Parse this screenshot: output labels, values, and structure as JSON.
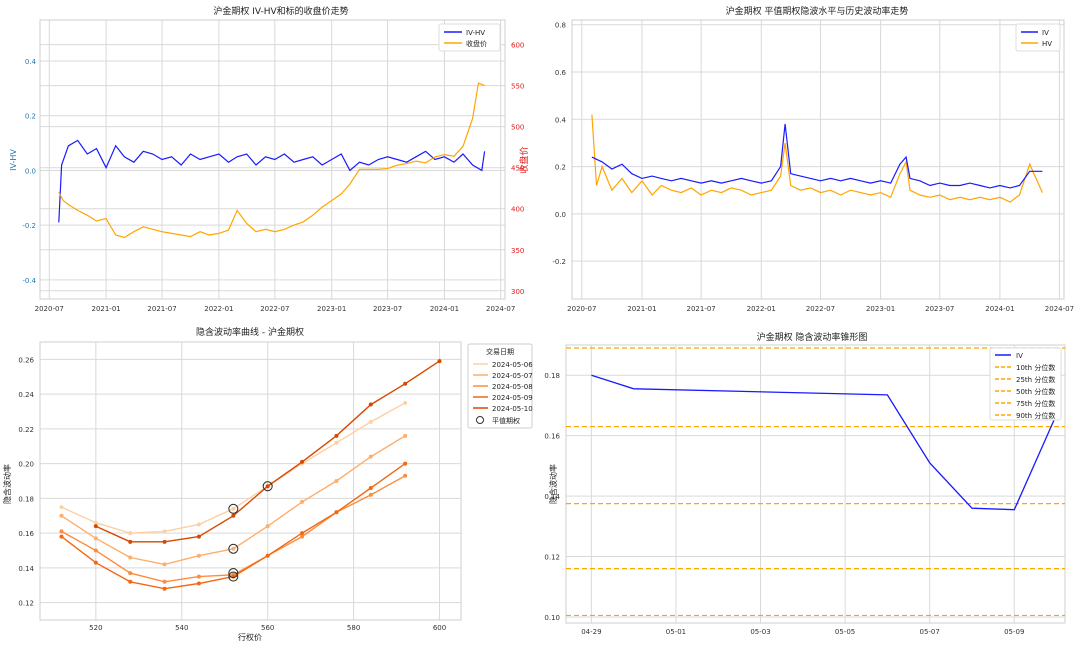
{
  "colors": {
    "blue": "#1a1aff",
    "orange": "#ffa500",
    "red": "#e41a1c",
    "axis_blue": "#1f77b4"
  },
  "chart_data": [
    {
      "type": "line",
      "title": "沪金期权 IV-HV和标的收盘价走势",
      "ylabel": "IV-HV",
      "y2label": "收盘价",
      "xticks": [
        "2020-07",
        "2021-01",
        "2021-07",
        "2022-01",
        "2022-07",
        "2023-01",
        "2023-07",
        "2024-01",
        "2024-07"
      ],
      "yticks": [
        "-0.4",
        "-0.2",
        "0.0",
        "0.2",
        "0.4"
      ],
      "y2ticks": [
        "300",
        "350",
        "400",
        "450",
        "500",
        "550",
        "600"
      ],
      "ylim": [
        -0.47,
        0.55
      ],
      "y2lim": [
        290,
        630
      ],
      "xlim": [
        "2020-06-01",
        "2024-07-15"
      ],
      "legend": [
        "IV-HV",
        "收盘价"
      ],
      "legend_position": "top-right",
      "series": [
        {
          "name": "IV-HV",
          "color": "#1a1aff",
          "x": [
            "2020-08-01",
            "2020-08-10",
            "2020-09-01",
            "2020-10-01",
            "2020-11-01",
            "2020-12-01",
            "2021-01-01",
            "2021-02-01",
            "2021-03-01",
            "2021-04-01",
            "2021-05-01",
            "2021-06-01",
            "2021-07-01",
            "2021-08-01",
            "2021-09-01",
            "2021-10-01",
            "2021-11-01",
            "2021-12-01",
            "2022-01-01",
            "2022-02-01",
            "2022-03-01",
            "2022-04-01",
            "2022-05-01",
            "2022-06-01",
            "2022-07-01",
            "2022-08-01",
            "2022-09-01",
            "2022-10-01",
            "2022-11-01",
            "2022-12-01",
            "2023-01-01",
            "2023-02-01",
            "2023-03-01",
            "2023-04-01",
            "2023-05-01",
            "2023-06-01",
            "2023-07-01",
            "2023-08-01",
            "2023-09-01",
            "2023-10-01",
            "2023-11-01",
            "2023-12-01",
            "2024-01-01",
            "2024-02-01",
            "2024-03-01",
            "2024-04-01",
            "2024-05-01",
            "2024-05-10"
          ],
          "values": [
            -0.19,
            0.02,
            0.09,
            0.11,
            0.06,
            0.08,
            0.01,
            0.09,
            0.05,
            0.03,
            0.07,
            0.06,
            0.04,
            0.05,
            0.02,
            0.06,
            0.04,
            0.05,
            0.06,
            0.03,
            0.05,
            0.06,
            0.02,
            0.05,
            0.04,
            0.06,
            0.03,
            0.04,
            0.05,
            0.02,
            0.04,
            0.06,
            0.0,
            0.03,
            0.02,
            0.04,
            0.05,
            0.04,
            0.03,
            0.05,
            0.07,
            0.04,
            0.05,
            0.03,
            0.06,
            0.02,
            0.0,
            0.07
          ]
        },
        {
          "name": "收盘价",
          "color": "#ffa500",
          "axis": "right",
          "x": [
            "2020-08-01",
            "2020-08-15",
            "2020-09-01",
            "2020-10-01",
            "2020-11-01",
            "2020-12-01",
            "2021-01-01",
            "2021-02-01",
            "2021-03-01",
            "2021-04-01",
            "2021-05-01",
            "2021-06-01",
            "2021-07-01",
            "2021-08-01",
            "2021-09-01",
            "2021-10-01",
            "2021-11-01",
            "2021-12-01",
            "2022-01-01",
            "2022-02-01",
            "2022-03-01",
            "2022-04-01",
            "2022-05-01",
            "2022-06-01",
            "2022-07-01",
            "2022-08-01",
            "2022-09-01",
            "2022-10-01",
            "2022-11-01",
            "2022-12-01",
            "2023-01-01",
            "2023-02-01",
            "2023-03-01",
            "2023-04-01",
            "2023-05-01",
            "2023-06-01",
            "2023-07-01",
            "2023-08-01",
            "2023-09-01",
            "2023-10-01",
            "2023-11-01",
            "2023-12-01",
            "2024-01-01",
            "2024-02-01",
            "2024-03-01",
            "2024-04-01",
            "2024-04-20",
            "2024-05-10"
          ],
          "values": [
            420,
            410,
            405,
            398,
            392,
            385,
            388,
            368,
            365,
            372,
            378,
            375,
            372,
            370,
            368,
            366,
            372,
            368,
            370,
            374,
            398,
            382,
            372,
            375,
            372,
            375,
            380,
            384,
            392,
            402,
            410,
            418,
            430,
            448,
            448,
            448,
            449,
            453,
            455,
            458,
            456,
            463,
            466,
            464,
            476,
            510,
            553,
            550
          ]
        }
      ]
    },
    {
      "type": "line",
      "title": "沪金期权 平值期权隐波水平与历史波动率走势",
      "xticks": [
        "2020-07",
        "2021-01",
        "2021-07",
        "2022-01",
        "2022-07",
        "2023-01",
        "2023-07",
        "2024-01",
        "2024-07"
      ],
      "yticks": [
        "-0.2",
        "0.0",
        "0.2",
        "0.4",
        "0.6",
        "0.8"
      ],
      "ylim": [
        -0.36,
        0.82
      ],
      "xlim": [
        "2020-06-01",
        "2024-07-15"
      ],
      "legend": [
        "IV",
        "HV"
      ],
      "legend_position": "top-right",
      "series": [
        {
          "name": "IV",
          "color": "#1a1aff",
          "x": [
            "2020-08-01",
            "2020-09-01",
            "2020-10-01",
            "2020-11-01",
            "2020-12-01",
            "2021-01-01",
            "2021-02-01",
            "2021-03-01",
            "2021-04-01",
            "2021-05-01",
            "2021-06-01",
            "2021-07-01",
            "2021-08-01",
            "2021-09-01",
            "2021-10-01",
            "2021-11-01",
            "2021-12-01",
            "2022-01-01",
            "2022-02-01",
            "2022-03-01",
            "2022-03-15",
            "2022-04-01",
            "2022-05-01",
            "2022-06-01",
            "2022-07-01",
            "2022-08-01",
            "2022-09-01",
            "2022-10-01",
            "2022-11-01",
            "2022-12-01",
            "2023-01-01",
            "2023-02-01",
            "2023-03-01",
            "2023-03-20",
            "2023-04-01",
            "2023-05-01",
            "2023-06-01",
            "2023-07-01",
            "2023-08-01",
            "2023-09-01",
            "2023-10-01",
            "2023-11-01",
            "2023-12-01",
            "2024-01-01",
            "2024-02-01",
            "2024-03-01",
            "2024-04-01",
            "2024-05-10"
          ],
          "values": [
            0.24,
            0.22,
            0.19,
            0.21,
            0.17,
            0.15,
            0.16,
            0.15,
            0.14,
            0.15,
            0.14,
            0.13,
            0.14,
            0.13,
            0.14,
            0.15,
            0.14,
            0.13,
            0.14,
            0.2,
            0.38,
            0.17,
            0.16,
            0.15,
            0.14,
            0.15,
            0.14,
            0.15,
            0.14,
            0.13,
            0.14,
            0.13,
            0.21,
            0.24,
            0.15,
            0.14,
            0.12,
            0.13,
            0.12,
            0.12,
            0.13,
            0.12,
            0.11,
            0.12,
            0.11,
            0.12,
            0.18,
            0.18
          ]
        },
        {
          "name": "HV",
          "color": "#ffa500",
          "x": [
            "2020-08-01",
            "2020-08-15",
            "2020-09-01",
            "2020-10-01",
            "2020-11-01",
            "2020-12-01",
            "2021-01-01",
            "2021-02-01",
            "2021-03-01",
            "2021-04-01",
            "2021-05-01",
            "2021-06-01",
            "2021-07-01",
            "2021-08-01",
            "2021-09-01",
            "2021-10-01",
            "2021-11-01",
            "2021-12-01",
            "2022-01-01",
            "2022-02-01",
            "2022-03-01",
            "2022-03-15",
            "2022-04-01",
            "2022-05-01",
            "2022-06-01",
            "2022-07-01",
            "2022-08-01",
            "2022-09-01",
            "2022-10-01",
            "2022-11-01",
            "2022-12-01",
            "2023-01-01",
            "2023-02-01",
            "2023-03-01",
            "2023-03-20",
            "2023-04-01",
            "2023-05-01",
            "2023-06-01",
            "2023-07-01",
            "2023-08-01",
            "2023-09-01",
            "2023-10-01",
            "2023-11-01",
            "2023-12-01",
            "2024-01-01",
            "2024-02-01",
            "2024-03-01",
            "2024-04-01",
            "2024-05-10"
          ],
          "values": [
            0.42,
            0.12,
            0.2,
            0.1,
            0.15,
            0.09,
            0.14,
            0.08,
            0.12,
            0.1,
            0.09,
            0.11,
            0.08,
            0.1,
            0.09,
            0.11,
            0.1,
            0.08,
            0.09,
            0.1,
            0.16,
            0.3,
            0.12,
            0.1,
            0.11,
            0.09,
            0.1,
            0.08,
            0.1,
            0.09,
            0.08,
            0.09,
            0.07,
            0.17,
            0.22,
            0.1,
            0.08,
            0.07,
            0.08,
            0.06,
            0.07,
            0.06,
            0.07,
            0.06,
            0.07,
            0.05,
            0.08,
            0.21,
            0.09
          ]
        }
      ]
    },
    {
      "type": "line",
      "title": "隐含波动率曲线 - 沪金期权",
      "xlabel": "行权价",
      "ylabel": "隐含波动率",
      "xticks": [
        "520",
        "540",
        "560",
        "580",
        "600"
      ],
      "yticks": [
        "0.12",
        "0.14",
        "0.16",
        "0.18",
        "0.20",
        "0.22",
        "0.24",
        "0.26"
      ],
      "xlim": [
        507,
        605
      ],
      "ylim": [
        0.11,
        0.27
      ],
      "legend_title": "交易日期",
      "legend": [
        "2024-05-06",
        "2024-05-07",
        "2024-05-08",
        "2024-05-09",
        "2024-05-10",
        "平值期权"
      ],
      "legend_position": "outside-right",
      "series": [
        {
          "name": "2024-05-06",
          "color": "#fdd0a2",
          "x": [
            512,
            520,
            528,
            536,
            544,
            552,
            560,
            568,
            576,
            584,
            592
          ],
          "values": [
            0.175,
            0.166,
            0.16,
            0.161,
            0.165,
            0.174,
            0.187,
            0.2,
            0.212,
            0.224,
            0.235
          ]
        },
        {
          "name": "2024-05-07",
          "color": "#fdae6b",
          "x": [
            512,
            520,
            528,
            536,
            544,
            552,
            560,
            568,
            576,
            584,
            592
          ],
          "values": [
            0.17,
            0.157,
            0.146,
            0.142,
            0.147,
            0.151,
            0.164,
            0.178,
            0.19,
            0.204,
            0.216
          ]
        },
        {
          "name": "2024-05-08",
          "color": "#fd8d3c",
          "x": [
            512,
            520,
            528,
            536,
            544,
            552,
            560,
            568,
            576,
            584,
            592
          ],
          "values": [
            0.161,
            0.15,
            0.137,
            0.132,
            0.135,
            0.136,
            0.147,
            0.158,
            0.172,
            0.182,
            0.193
          ]
        },
        {
          "name": "2024-05-09",
          "color": "#f16913",
          "x": [
            512,
            520,
            528,
            536,
            544,
            552,
            560,
            568,
            576,
            584,
            592
          ],
          "values": [
            0.158,
            0.143,
            0.132,
            0.128,
            0.131,
            0.135,
            0.147,
            0.16,
            0.172,
            0.186,
            0.2
          ]
        },
        {
          "name": "2024-05-10",
          "color": "#d94801",
          "x": [
            520,
            528,
            536,
            544,
            552,
            560,
            568,
            576,
            584,
            592,
            600
          ],
          "values": [
            0.164,
            0.155,
            0.155,
            0.158,
            0.17,
            0.187,
            0.201,
            0.216,
            0.234,
            0.246,
            0.259
          ]
        }
      ],
      "atm_points": [
        {
          "x": 552,
          "y": 0.174
        },
        {
          "x": 552,
          "y": 0.151
        },
        {
          "x": 552,
          "y": 0.137
        },
        {
          "x": 552,
          "y": 0.135
        },
        {
          "x": 560,
          "y": 0.187
        }
      ]
    },
    {
      "type": "line",
      "title": "沪金期权 隐含波动率锥形图",
      "ylabel": "隐含波动率",
      "xticks": [
        "04-29",
        "05-01",
        "05-03",
        "05-05",
        "05-07",
        "05-09"
      ],
      "yticks": [
        "0.10",
        "0.12",
        "0.14",
        "0.16",
        "0.18"
      ],
      "xlim": [
        -0.6,
        11.2
      ],
      "ylim": [
        0.098,
        0.19
      ],
      "legend": [
        "IV",
        "10th 分位数",
        "25th 分位数",
        "50th 分位数",
        "75th 分位数",
        "90th 分位数"
      ],
      "legend_position": "top-right",
      "series": [
        {
          "name": "IV",
          "color": "#1a1aff",
          "x": [
            0,
            1,
            7,
            8,
            9,
            10,
            11
          ],
          "values": [
            0.18,
            0.1755,
            0.1735,
            0.151,
            0.136,
            0.1355,
            0.167
          ]
        }
      ],
      "percentiles": [
        0.1005,
        0.116,
        0.1375,
        0.163,
        0.189
      ]
    }
  ]
}
